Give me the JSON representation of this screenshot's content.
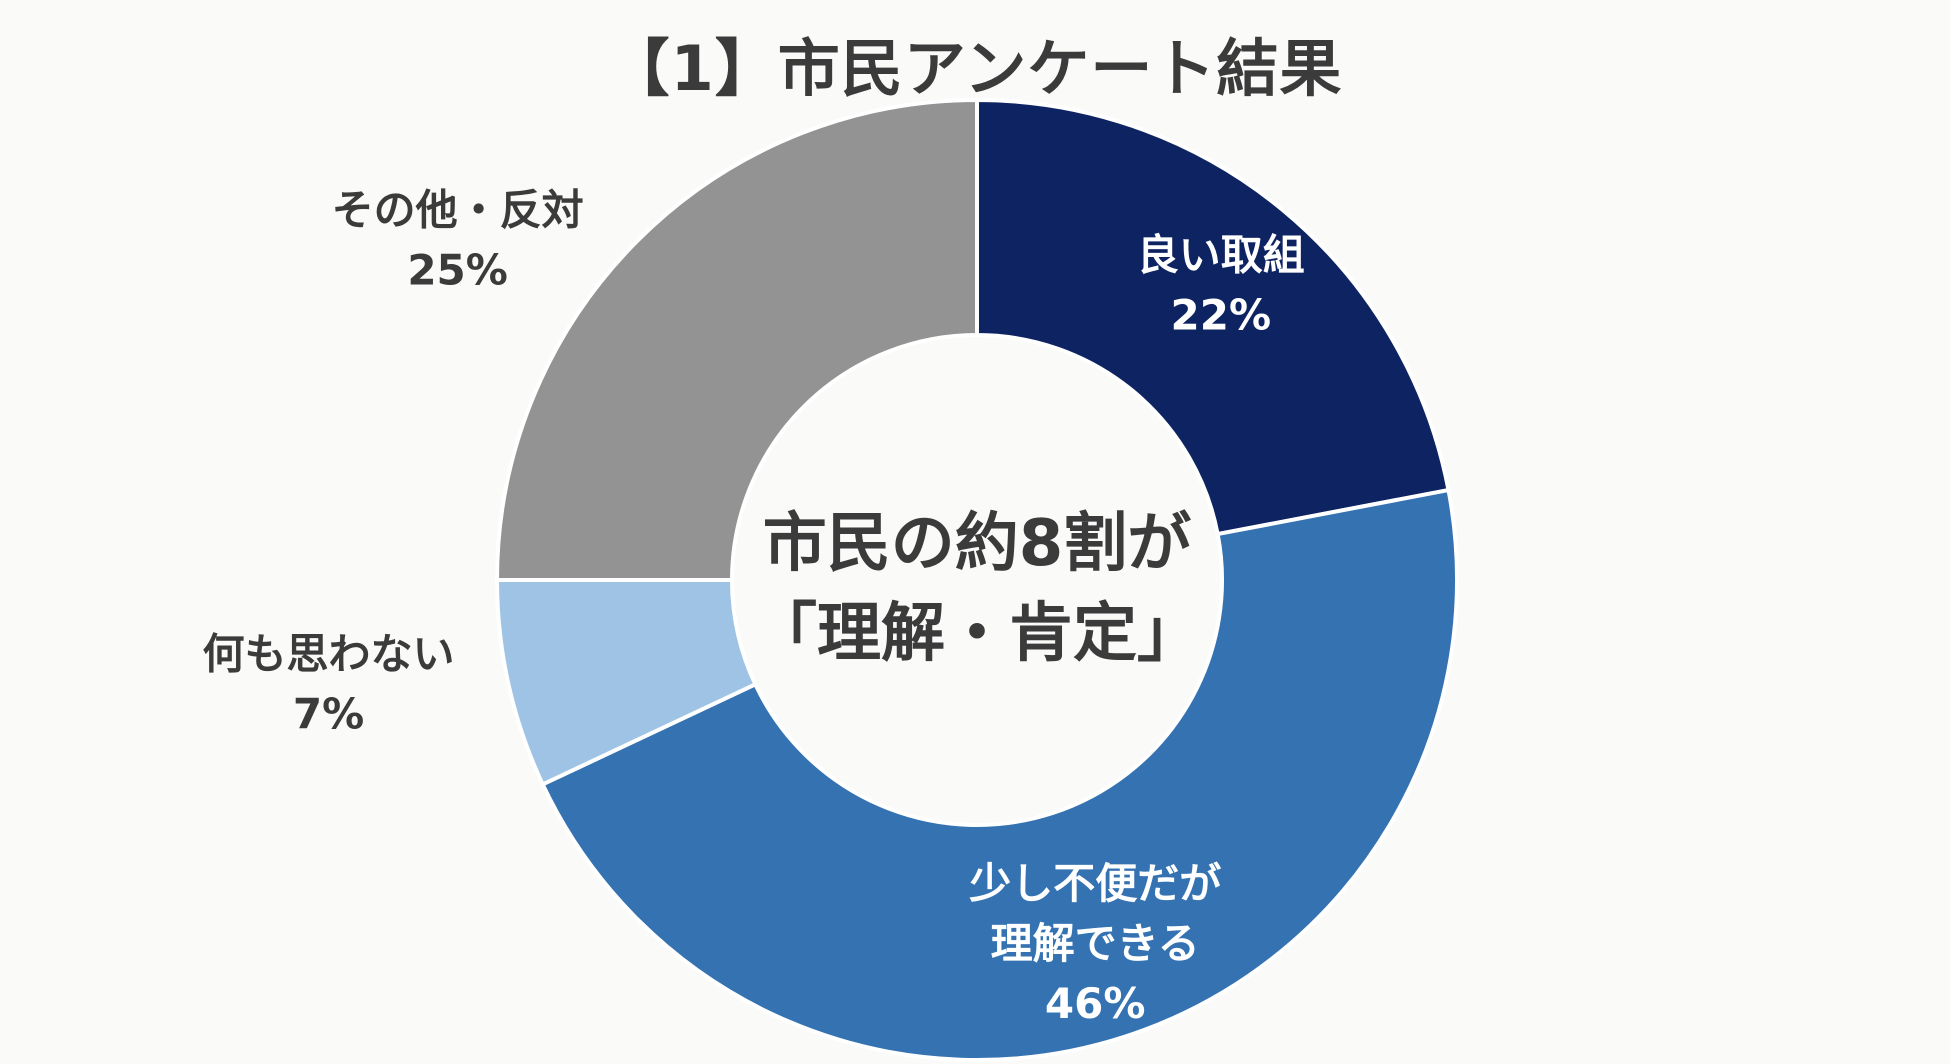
{
  "title": "【1】市民アンケート結果",
  "center_text": [
    "市民の約8割が",
    "「理解・肯定」"
  ],
  "chart_data": {
    "type": "pie",
    "title": "【1】市民アンケート結果",
    "slices": [
      {
        "label": [
          "良い取組"
        ],
        "value_label": "22%",
        "value": 22,
        "color": "#0e2462",
        "text_color": "#ffffff",
        "label_position": "inside"
      },
      {
        "label": [
          "少し不便だが",
          "理解できる"
        ],
        "value_label": "46%",
        "value": 46,
        "color": "#3472b2",
        "text_color": "#ffffff",
        "label_position": "inside"
      },
      {
        "label": [
          "何も思わない"
        ],
        "value_label": "7%",
        "value": 7,
        "color": "#9ec3e4",
        "text_color": "#3b3b3b",
        "label_position": "outside-left"
      },
      {
        "label": [
          "その他・反対"
        ],
        "value_label": "25%",
        "value": 25,
        "color": "#939393",
        "text_color": "#3b3b3b",
        "label_position": "outside-left"
      }
    ]
  }
}
